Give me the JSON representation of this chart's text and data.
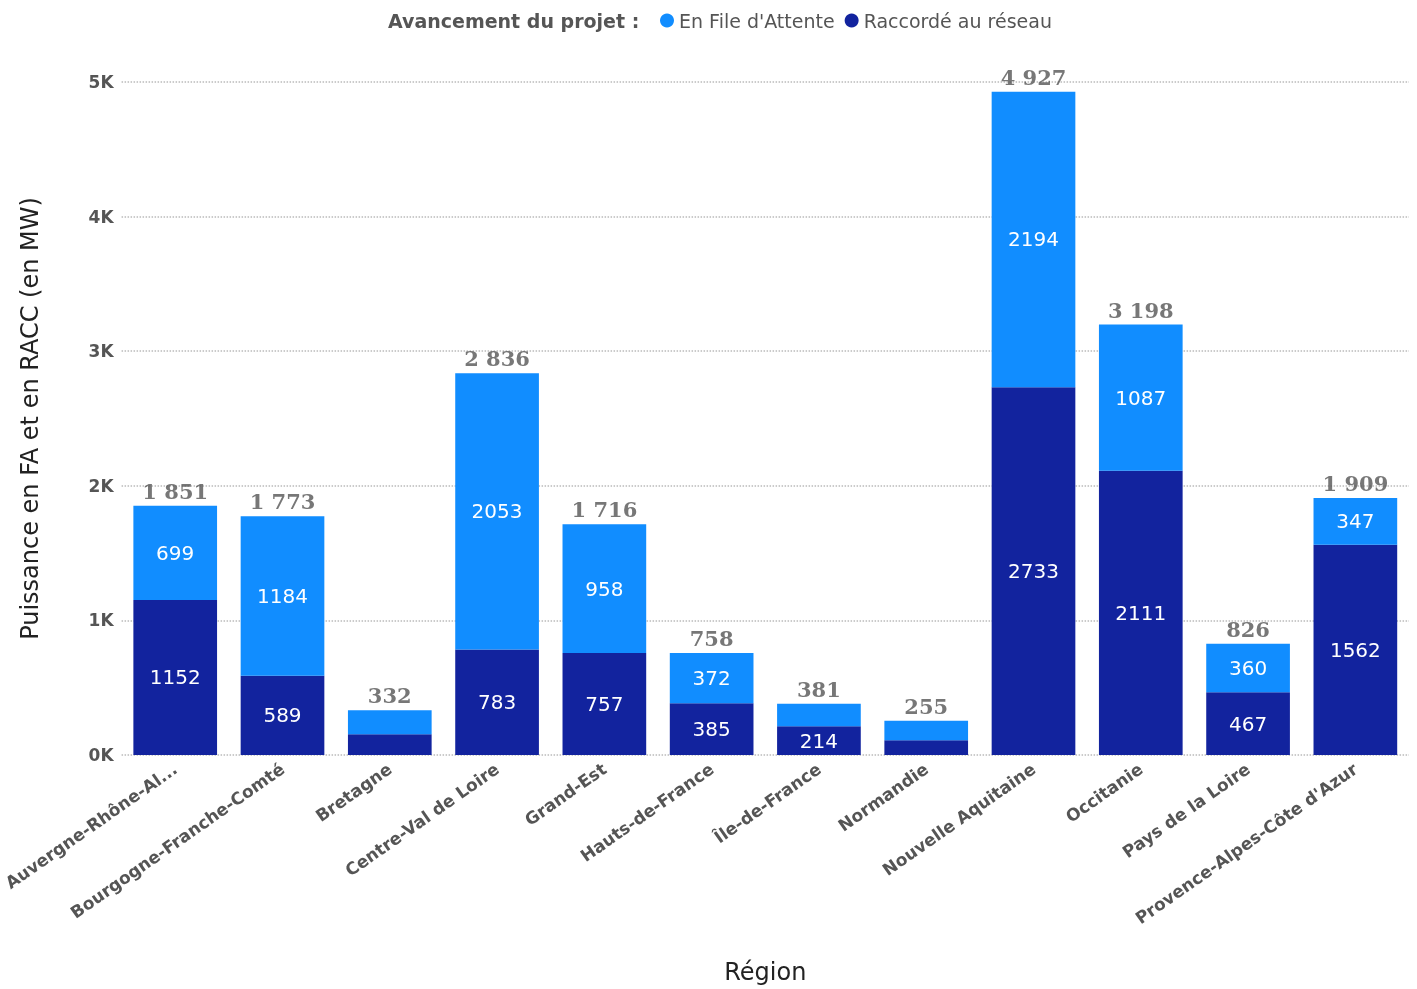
{
  "chart_data": {
    "type": "bar",
    "stacked": true,
    "xlabel": "Région",
    "ylabel": "Puissance en FA et en RACC (en MW)",
    "legend_title": "Avancement du projet :",
    "legend": "top",
    "categories": [
      "Auvergne-Rhône-Al...",
      "Bourgogne-Franche-Comté",
      "Bretagne",
      "Centre-Val de Loire",
      "Grand-Est",
      "Hauts-de-France",
      "Île-de-France",
      "Normandie",
      "Nouvelle Aquitaine",
      "Occitanie",
      "Pays de la Loire",
      "Provence-Alpes-Côte d'Azur"
    ],
    "series": [
      {
        "name": "Raccordé au réseau",
        "color": "#12239e",
        "values": [
          1152,
          589,
          155,
          783,
          757,
          385,
          214,
          110,
          2733,
          2111,
          467,
          1562
        ],
        "value_labels": [
          "1152",
          "589",
          null,
          "783",
          "757",
          "385",
          "214",
          null,
          "2733",
          "2111",
          "467",
          "1562"
        ]
      },
      {
        "name": "En File d'Attente",
        "color": "#118dff",
        "values": [
          699,
          1184,
          177,
          2053,
          958,
          372,
          167,
          145,
          2194,
          1087,
          360,
          347
        ],
        "value_labels": [
          "699",
          "1184",
          null,
          "2053",
          "958",
          "372",
          null,
          null,
          "2194",
          "1087",
          "360",
          "347"
        ]
      }
    ],
    "totals": [
      "1 851",
      "1 773",
      "332",
      "2 836",
      "1 716",
      "758",
      "381",
      "255",
      "4 927",
      "3 198",
      "826",
      "1 909"
    ],
    "ylim": [
      0,
      5000
    ],
    "yticks": [
      {
        "value": 0,
        "label": "0K"
      },
      {
        "value": 1000,
        "label": "1K"
      },
      {
        "value": 2000,
        "label": "2K"
      },
      {
        "value": 3000,
        "label": "3K"
      },
      {
        "value": 4000,
        "label": "4K"
      },
      {
        "value": 5000,
        "label": "5K"
      }
    ],
    "grid": "y",
    "marker": "circle"
  }
}
